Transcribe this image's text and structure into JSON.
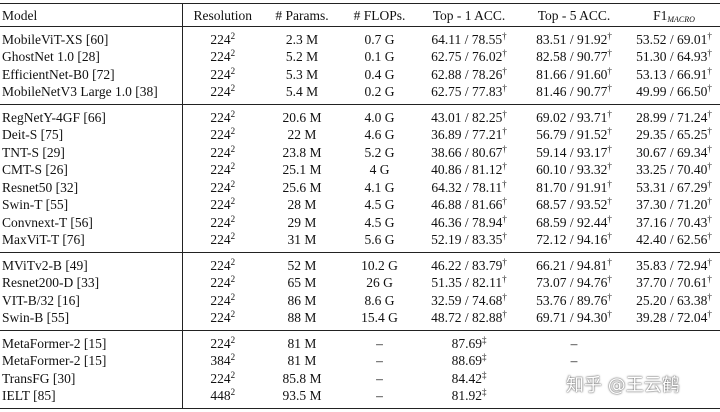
{
  "table": {
    "header": [
      "Model",
      "Resolution",
      "# Params.",
      "# FLOPs.",
      "Top - 1 ACC.",
      "Top - 5 ACC.",
      {
        "text": "F1",
        "sub": "MACRO"
      }
    ],
    "groups": [
      {
        "rows": [
          [
            "MobileViT-XS [60]",
            {
              "text": "224",
              "sup": "2"
            },
            "2.3 M",
            "0.7 G",
            {
              "text": "64.11 / 78.55",
              "sup": "†"
            },
            {
              "text": "83.51 / 91.92",
              "sup": "†"
            },
            {
              "text": "53.52 / 69.01",
              "sup": "†"
            }
          ],
          [
            "GhostNet 1.0 [28]",
            {
              "text": "224",
              "sup": "2"
            },
            "5.2 M",
            "0.1 G",
            {
              "text": "62.75 / 76.02",
              "sup": "†"
            },
            {
              "text": "82.58 / 90.77",
              "sup": "†"
            },
            {
              "text": "51.30 / 64.93",
              "sup": "†"
            }
          ],
          [
            "EfficientNet-B0 [72]",
            {
              "text": "224",
              "sup": "2"
            },
            "5.3 M",
            "0.4 G",
            {
              "text": "62.88 / 78.26",
              "sup": "†"
            },
            {
              "text": "81.66 / 91.60",
              "sup": "†"
            },
            {
              "text": "53.13 / 66.91",
              "sup": "†"
            }
          ],
          [
            "MobileNetV3 Large 1.0 [38]",
            {
              "text": "224",
              "sup": "2"
            },
            "5.4 M",
            "0.2 G",
            {
              "text": "62.75 / 77.83",
              "sup": "†"
            },
            {
              "text": "81.46 / 90.77",
              "sup": "†"
            },
            {
              "text": "49.99 / 66.50",
              "sup": "†"
            }
          ]
        ]
      },
      {
        "rows": [
          [
            "RegNetY-4GF [66]",
            {
              "text": "224",
              "sup": "2"
            },
            "20.6 M",
            "4.0 G",
            {
              "text": "43.01 / 82.25",
              "sup": "†"
            },
            {
              "text": "69.02 / 93.71",
              "sup": "†"
            },
            {
              "text": "28.99 / 71.24",
              "sup": "†"
            }
          ],
          [
            "Deit-S [75]",
            {
              "text": "224",
              "sup": "2"
            },
            "22 M",
            "4.6 G",
            {
              "text": "36.89 / 77.21",
              "sup": "†"
            },
            {
              "text": "56.79 / 91.52",
              "sup": "†"
            },
            {
              "text": "29.35 / 65.25",
              "sup": "†"
            }
          ],
          [
            "TNT-S [29]",
            {
              "text": "224",
              "sup": "2"
            },
            "23.8 M",
            "5.2 G",
            {
              "text": "38.66 / 80.67",
              "sup": "†"
            },
            {
              "text": "59.14 / 93.17",
              "sup": "†"
            },
            {
              "text": "30.67 / 69.34",
              "sup": "†"
            }
          ],
          [
            "CMT-S [26]",
            {
              "text": "224",
              "sup": "2"
            },
            "25.1 M",
            "4 G",
            {
              "text": "40.86 / 81.12",
              "sup": "†"
            },
            {
              "text": "60.10 / 93.32",
              "sup": "†"
            },
            {
              "text": "33.25 / 70.40",
              "sup": "†"
            }
          ],
          [
            "Resnet50 [32]",
            {
              "text": "224",
              "sup": "2"
            },
            "25.6 M",
            "4.1 G",
            {
              "text": "64.32 / 78.11",
              "sup": "†"
            },
            {
              "text": "81.70 / 91.91",
              "sup": "†"
            },
            {
              "text": "53.31 / 67.29",
              "sup": "†"
            }
          ],
          [
            "Swin-T [55]",
            {
              "text": "224",
              "sup": "2"
            },
            "28 M",
            "4.5 G",
            {
              "text": "46.88 / 81.66",
              "sup": "†"
            },
            {
              "text": "68.57 / 93.52",
              "sup": "†"
            },
            {
              "text": "37.30 / 71.20",
              "sup": "†"
            }
          ],
          [
            "Convnext-T [56]",
            {
              "text": "224",
              "sup": "2"
            },
            "29 M",
            "4.5 G",
            {
              "text": "46.36 / 78.94",
              "sup": "†"
            },
            {
              "text": "68.59 / 92.44",
              "sup": "†"
            },
            {
              "text": "37.16 / 70.43",
              "sup": "†"
            }
          ],
          [
            "MaxViT-T [76]",
            {
              "text": "224",
              "sup": "2"
            },
            "31 M",
            "5.6 G",
            {
              "text": "52.19 / 83.35",
              "sup": "†"
            },
            {
              "text": "72.12 / 94.16",
              "sup": "†"
            },
            {
              "text": "42.40 / 62.56",
              "sup": "†"
            }
          ]
        ]
      },
      {
        "rows": [
          [
            "MViTv2-B [49]",
            {
              "text": "224",
              "sup": "2"
            },
            "52 M",
            "10.2 G",
            {
              "text": "46.22 / 83.79",
              "sup": "†"
            },
            {
              "text": "66.21 / 94.81",
              "sup": "†"
            },
            {
              "text": "35.83 / 72.94",
              "sup": "†"
            }
          ],
          [
            "Resnet200-D [33]",
            {
              "text": "224",
              "sup": "2"
            },
            "65 M",
            "26 G",
            {
              "text": "51.35 / 82.11",
              "sup": "†"
            },
            {
              "text": "73.07 / 94.76",
              "sup": "†"
            },
            {
              "text": "37.70 / 70.61",
              "sup": "†"
            }
          ],
          [
            "VIT-B/32 [16]",
            {
              "text": "224",
              "sup": "2"
            },
            "86 M",
            "8.6 G",
            {
              "text": "32.59 / 74.68",
              "sup": "†"
            },
            {
              "text": "53.76 / 89.76",
              "sup": "†"
            },
            {
              "text": "25.20 / 63.38",
              "sup": "†"
            }
          ],
          [
            "Swin-B [55]",
            {
              "text": "224",
              "sup": "2"
            },
            "88 M",
            "15.4 G",
            {
              "text": "48.72 / 82.88",
              "sup": "†"
            },
            {
              "text": "69.71 / 94.30",
              "sup": "†"
            },
            {
              "text": "39.28 / 72.04",
              "sup": "†"
            }
          ]
        ]
      },
      {
        "rows": [
          [
            "MetaFormer-2 [15]",
            {
              "text": "224",
              "sup": "2"
            },
            "81 M",
            "–",
            {
              "text": "87.69",
              "sup": "‡"
            },
            "–",
            null
          ],
          [
            "MetaFormer-2 [15]",
            {
              "text": "384",
              "sup": "2"
            },
            "81 M",
            "–",
            {
              "text": "88.69",
              "sup": "‡"
            },
            "–",
            null
          ],
          [
            "TransFG [30]",
            {
              "text": "224",
              "sup": "2"
            },
            "85.8 M",
            "–",
            {
              "text": "84.42",
              "sup": "‡"
            },
            null,
            null
          ],
          [
            "IELT [85]",
            {
              "text": "448",
              "sup": "2"
            },
            "93.5 M",
            "–",
            {
              "text": "81.92",
              "sup": "‡"
            },
            null,
            null
          ]
        ]
      }
    ]
  },
  "watermark": "知乎 @王云鹤"
}
